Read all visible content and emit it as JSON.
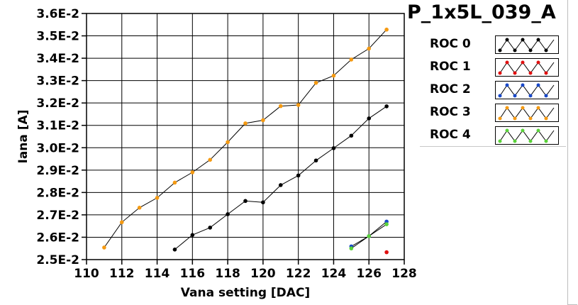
{
  "chart_data": {
    "type": "scatter",
    "title": "P_1x5L_039_A",
    "xlabel": "Vana setting [DAC]",
    "ylabel": "Iana [A]",
    "xlim": [
      110,
      128
    ],
    "ylim": [
      0.025,
      0.036
    ],
    "x_ticks": [
      "110",
      "112",
      "114",
      "116",
      "118",
      "120",
      "122",
      "124",
      "126",
      "128"
    ],
    "y_ticks": [
      "2.5E-2",
      "2.6E-2",
      "2.7E-2",
      "2.8E-2",
      "2.9E-2",
      "3.0E-2",
      "3.1E-2",
      "3.2E-2",
      "3.3E-2",
      "3.4E-2",
      "3.5E-2",
      "3.6E-2"
    ],
    "grid": true,
    "legend_position": "right",
    "series": [
      {
        "name": "ROC 0",
        "color": "#000000",
        "points": [
          [
            115,
            0.02545
          ],
          [
            116,
            0.0261
          ],
          [
            117,
            0.02643
          ],
          [
            118,
            0.02703
          ],
          [
            119,
            0.02762
          ],
          [
            120,
            0.02756
          ],
          [
            121,
            0.02833
          ],
          [
            122,
            0.02876
          ],
          [
            123,
            0.02943
          ],
          [
            124,
            0.02998
          ],
          [
            125,
            0.03054
          ],
          [
            126,
            0.03131
          ],
          [
            127,
            0.03185
          ]
        ]
      },
      {
        "name": "ROC 1",
        "color": "#e01010",
        "points": [
          [
            127,
            0.02533
          ]
        ]
      },
      {
        "name": "ROC 2",
        "color": "#1848c8",
        "points": [
          [
            125,
            0.02559
          ],
          [
            126,
            0.02605
          ],
          [
            127,
            0.0267
          ]
        ]
      },
      {
        "name": "ROC 3",
        "color": "#f59a12",
        "points": [
          [
            111,
            0.02554
          ],
          [
            112,
            0.02667
          ],
          [
            113,
            0.02732
          ],
          [
            114,
            0.02776
          ],
          [
            115,
            0.02844
          ],
          [
            116,
            0.0289
          ],
          [
            117,
            0.02946
          ],
          [
            118,
            0.03025
          ],
          [
            119,
            0.03109
          ],
          [
            120,
            0.03123
          ],
          [
            121,
            0.03186
          ],
          [
            122,
            0.03191
          ],
          [
            123,
            0.0329
          ],
          [
            124,
            0.03322
          ],
          [
            125,
            0.03394
          ],
          [
            126,
            0.03443
          ],
          [
            127,
            0.03528
          ]
        ]
      },
      {
        "name": "ROC 4",
        "color": "#5ad23a",
        "points": [
          [
            125,
            0.0255
          ],
          [
            126,
            0.02605
          ],
          [
            127,
            0.02658
          ]
        ]
      }
    ]
  }
}
